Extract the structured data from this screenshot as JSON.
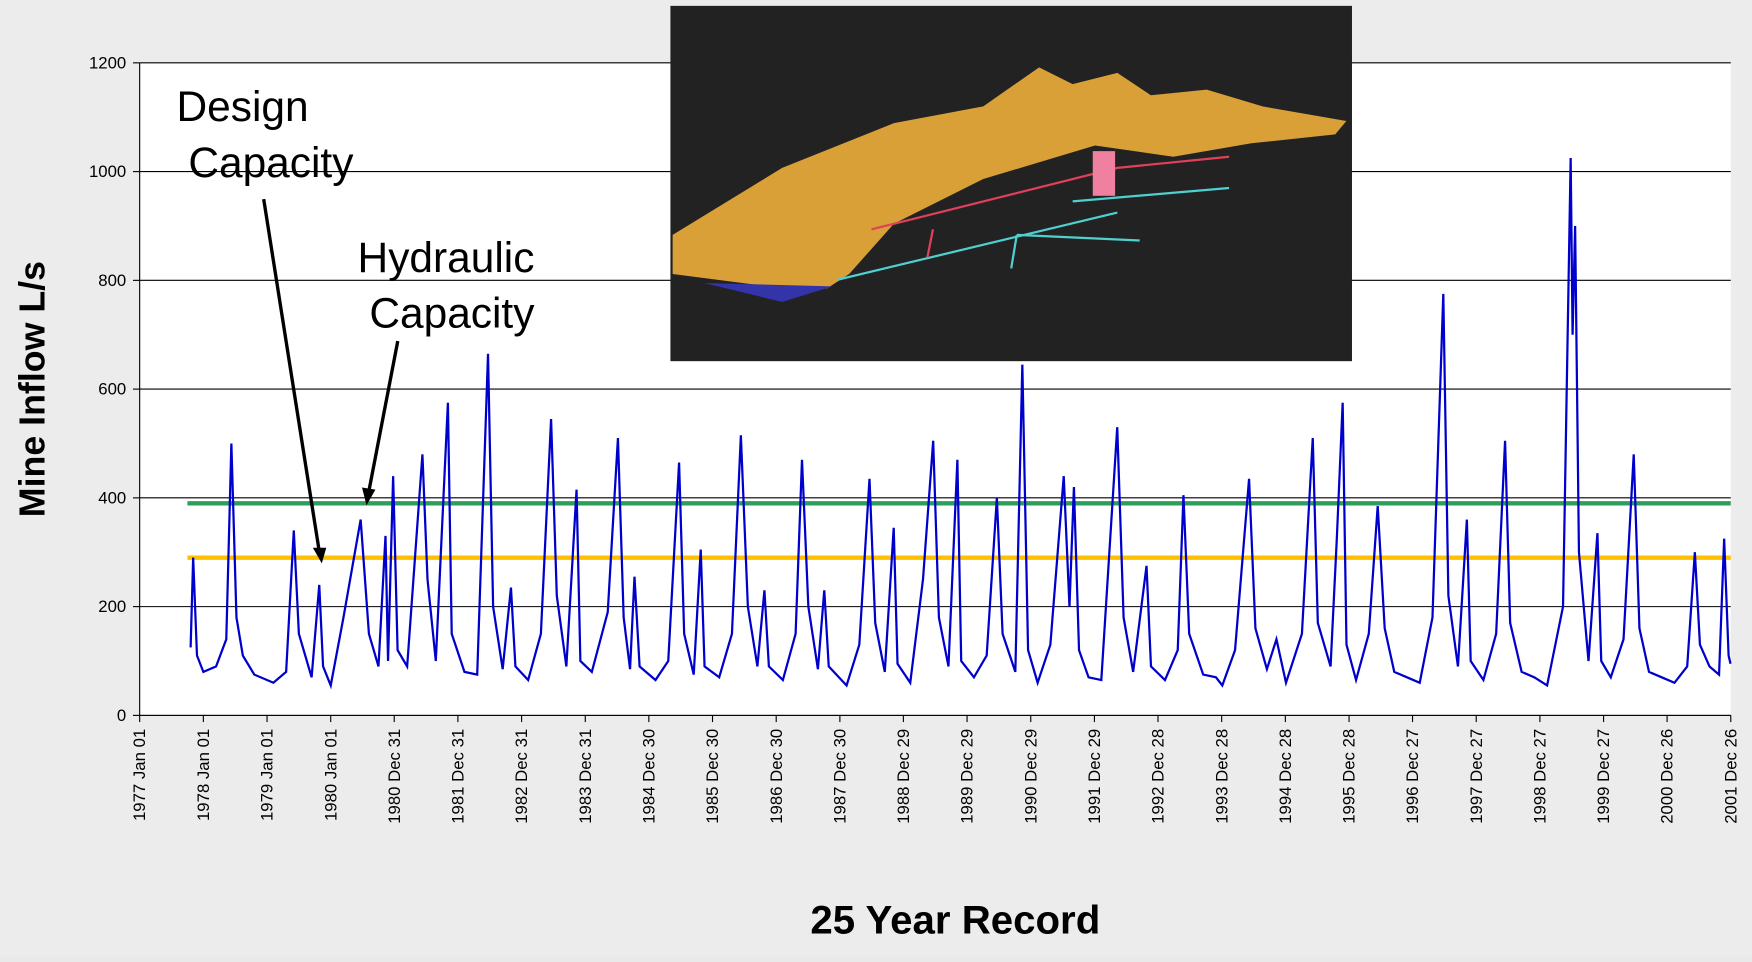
{
  "chart_data": {
    "type": "line",
    "ylabel": "Mine Inflow L/s",
    "xlabel": "25 Year Record",
    "xlim": [
      1977.0,
      2001.984
    ],
    "ylim": [
      0,
      1200
    ],
    "yticks": [
      0,
      200,
      400,
      600,
      800,
      1000,
      1200
    ],
    "xticks": [
      {
        "value": 1977.0,
        "label": "1977 Jan 01"
      },
      {
        "value": 1978.0,
        "label": "1978 Jan 01"
      },
      {
        "value": 1979.0,
        "label": "1979 Jan 01"
      },
      {
        "value": 1980.0,
        "label": "1980 Jan 01"
      },
      {
        "value": 1980.997,
        "label": "1980 Dec 31"
      },
      {
        "value": 1981.997,
        "label": "1981 Dec 31"
      },
      {
        "value": 1982.997,
        "label": "1982 Dec 31"
      },
      {
        "value": 1983.997,
        "label": "1983 Dec 31"
      },
      {
        "value": 1984.995,
        "label": "1984 Dec 30"
      },
      {
        "value": 1985.995,
        "label": "1985 Dec 30"
      },
      {
        "value": 1986.995,
        "label": "1986 Dec 30"
      },
      {
        "value": 1987.995,
        "label": "1987 Dec 30"
      },
      {
        "value": 1988.992,
        "label": "1988 Dec 29"
      },
      {
        "value": 1989.992,
        "label": "1989 Dec 29"
      },
      {
        "value": 1990.992,
        "label": "1990 Dec 29"
      },
      {
        "value": 1991.992,
        "label": "1991 Dec 29"
      },
      {
        "value": 1992.99,
        "label": "1992 Dec 28"
      },
      {
        "value": 1993.99,
        "label": "1993 Dec 28"
      },
      {
        "value": 1994.99,
        "label": "1994 Dec 28"
      },
      {
        "value": 1995.99,
        "label": "1995 Dec 28"
      },
      {
        "value": 1996.987,
        "label": "1996 Dec 27"
      },
      {
        "value": 1997.987,
        "label": "1997 Dec 27"
      },
      {
        "value": 1998.987,
        "label": "1998 Dec 27"
      },
      {
        "value": 1999.987,
        "label": "1999 Dec 27"
      },
      {
        "value": 2000.984,
        "label": "2000 Dec 26"
      },
      {
        "value": 2001.984,
        "label": "2001 Dec 26"
      }
    ],
    "grid": true,
    "reference_lines": [
      {
        "label": "Design Capacity",
        "value": 290,
        "color": "#ffc000",
        "start": 1977.75
      },
      {
        "label": "Hydraulic Capacity",
        "value": 390,
        "color": "#2e9e5b",
        "start": 1977.75
      }
    ],
    "x": [
      1977.8,
      1977.84,
      1977.9,
      1978.0,
      1978.2,
      1978.36,
      1978.44,
      1978.52,
      1978.62,
      1978.8,
      1979.1,
      1979.3,
      1979.42,
      1979.5,
      1979.7,
      1979.82,
      1979.88,
      1980.0,
      1980.2,
      1980.47,
      1980.6,
      1980.75,
      1980.86,
      1980.9,
      1980.98,
      1981.05,
      1981.2,
      1981.44,
      1981.52,
      1981.65,
      1981.84,
      1981.9,
      1982.1,
      1982.3,
      1982.47,
      1982.55,
      1982.7,
      1982.83,
      1982.9,
      1983.1,
      1983.3,
      1983.46,
      1983.55,
      1983.7,
      1983.86,
      1983.92,
      1984.1,
      1984.35,
      1984.51,
      1984.6,
      1984.7,
      1984.77,
      1984.85,
      1985.1,
      1985.3,
      1985.47,
      1985.55,
      1985.7,
      1985.81,
      1985.87,
      1986.1,
      1986.3,
      1986.44,
      1986.55,
      1986.7,
      1986.81,
      1986.88,
      1987.1,
      1987.3,
      1987.4,
      1987.5,
      1987.65,
      1987.75,
      1987.82,
      1988.1,
      1988.3,
      1988.46,
      1988.55,
      1988.7,
      1988.84,
      1988.9,
      1989.1,
      1989.3,
      1989.46,
      1989.55,
      1989.7,
      1989.84,
      1989.9,
      1990.1,
      1990.3,
      1990.46,
      1990.55,
      1990.75,
      1990.86,
      1990.95,
      1991.1,
      1991.3,
      1991.51,
      1991.6,
      1991.67,
      1991.75,
      1991.9,
      1992.1,
      1992.35,
      1992.45,
      1992.6,
      1992.81,
      1992.88,
      1993.1,
      1993.3,
      1993.39,
      1993.48,
      1993.7,
      1993.9,
      1994.0,
      1994.2,
      1994.42,
      1994.52,
      1994.7,
      1994.85,
      1995.0,
      1995.25,
      1995.42,
      1995.5,
      1995.7,
      1995.8,
      1995.89,
      1995.95,
      1996.1,
      1996.3,
      1996.44,
      1996.55,
      1996.7,
      1996.9,
      1997.1,
      1997.3,
      1997.47,
      1997.55,
      1997.7,
      1997.84,
      1997.9,
      1998.1,
      1998.3,
      1998.44,
      1998.52,
      1998.7,
      1998.9,
      1999.1,
      1999.35,
      1999.47,
      1999.5,
      1999.54,
      1999.6,
      1999.75,
      1999.89,
      1999.95,
      2000.1,
      2000.3,
      2000.46,
      2000.55,
      2000.7,
      2000.9,
      2001.1,
      2001.3,
      2001.42,
      2001.5,
      2001.65,
      2001.8,
      2001.88,
      2001.95,
      2001.98
    ],
    "series": [
      {
        "color": "#0000cc",
        "values": [
          125,
          290,
          110,
          80,
          90,
          140,
          500,
          180,
          110,
          75,
          60,
          80,
          340,
          150,
          70,
          240,
          90,
          55,
          180,
          360,
          150,
          90,
          330,
          100,
          440,
          120,
          90,
          480,
          250,
          100,
          575,
          150,
          80,
          75,
          665,
          200,
          85,
          235,
          90,
          65,
          150,
          545,
          220,
          90,
          415,
          100,
          80,
          190,
          510,
          180,
          85,
          255,
          90,
          65,
          100,
          465,
          150,
          75,
          305,
          90,
          70,
          150,
          515,
          200,
          90,
          230,
          90,
          65,
          150,
          470,
          200,
          85,
          230,
          90,
          55,
          130,
          435,
          170,
          80,
          345,
          95,
          60,
          250,
          505,
          180,
          90,
          470,
          100,
          70,
          110,
          400,
          150,
          80,
          645,
          120,
          60,
          130,
          440,
          200,
          420,
          120,
          70,
          65,
          530,
          180,
          80,
          275,
          90,
          65,
          120,
          405,
          150,
          75,
          70,
          55,
          120,
          435,
          160,
          85,
          140,
          60,
          150,
          510,
          170,
          90,
          330,
          575,
          130,
          65,
          150,
          385,
          160,
          80,
          70,
          60,
          180,
          775,
          220,
          90,
          360,
          100,
          65,
          150,
          505,
          170,
          80,
          70,
          55,
          200,
          1025,
          700,
          900,
          300,
          100,
          335,
          100,
          70,
          140,
          480,
          160,
          80,
          70,
          60,
          90,
          300,
          130,
          90,
          75,
          325,
          110,
          95
        ]
      }
    ]
  }
}
